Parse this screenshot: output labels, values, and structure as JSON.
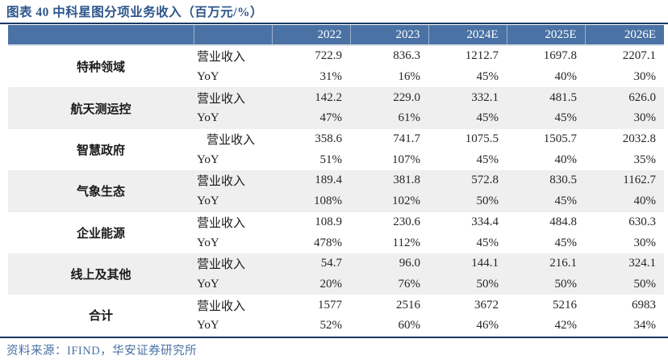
{
  "title": "图表 40 中科星图分项业务收入（百万元/%）",
  "source": "资料来源：IFIND，华安证券研究所",
  "colors": {
    "header_bg": "#4a72a4",
    "title_text": "#2d568c",
    "rule": "#1b3a63",
    "stripe": "#efefef",
    "source_text": "#4a72a4"
  },
  "table": {
    "columns": [
      "2022",
      "2023",
      "2024E",
      "2025E",
      "2026E"
    ],
    "metric_labels": [
      "营业收入",
      "YoY"
    ],
    "groups": [
      {
        "name": "特种领域",
        "revenue": [
          "722.9",
          "836.3",
          "1212.7",
          "1697.8",
          "2207.1"
        ],
        "yoy": [
          "31%",
          "16%",
          "45%",
          "40%",
          "30%"
        ]
      },
      {
        "name": "航天测运控",
        "revenue": [
          "142.2",
          "229.0",
          "332.1",
          "481.5",
          "626.0"
        ],
        "yoy": [
          "47%",
          "61%",
          "45%",
          "45%",
          "30%"
        ]
      },
      {
        "name": "智慧政府",
        "indent": true,
        "revenue": [
          "358.6",
          "741.7",
          "1075.5",
          "1505.7",
          "2032.8"
        ],
        "yoy": [
          "51%",
          "107%",
          "45%",
          "40%",
          "35%"
        ]
      },
      {
        "name": "气象生态",
        "revenue": [
          "189.4",
          "381.8",
          "572.8",
          "830.5",
          "1162.7"
        ],
        "yoy": [
          "108%",
          "102%",
          "50%",
          "45%",
          "40%"
        ]
      },
      {
        "name": "企业能源",
        "revenue": [
          "108.9",
          "230.6",
          "334.4",
          "484.8",
          "630.3"
        ],
        "yoy": [
          "478%",
          "112%",
          "45%",
          "45%",
          "30%"
        ]
      },
      {
        "name": "线上及其他",
        "revenue": [
          "54.7",
          "96.0",
          "144.1",
          "216.1",
          "324.1"
        ],
        "yoy": [
          "20%",
          "76%",
          "50%",
          "50%",
          "50%"
        ]
      },
      {
        "name": "合计",
        "revenue": [
          "1577",
          "2516",
          "3672",
          "5216",
          "6983"
        ],
        "yoy": [
          "52%",
          "60%",
          "46%",
          "42%",
          "34%"
        ]
      }
    ]
  }
}
